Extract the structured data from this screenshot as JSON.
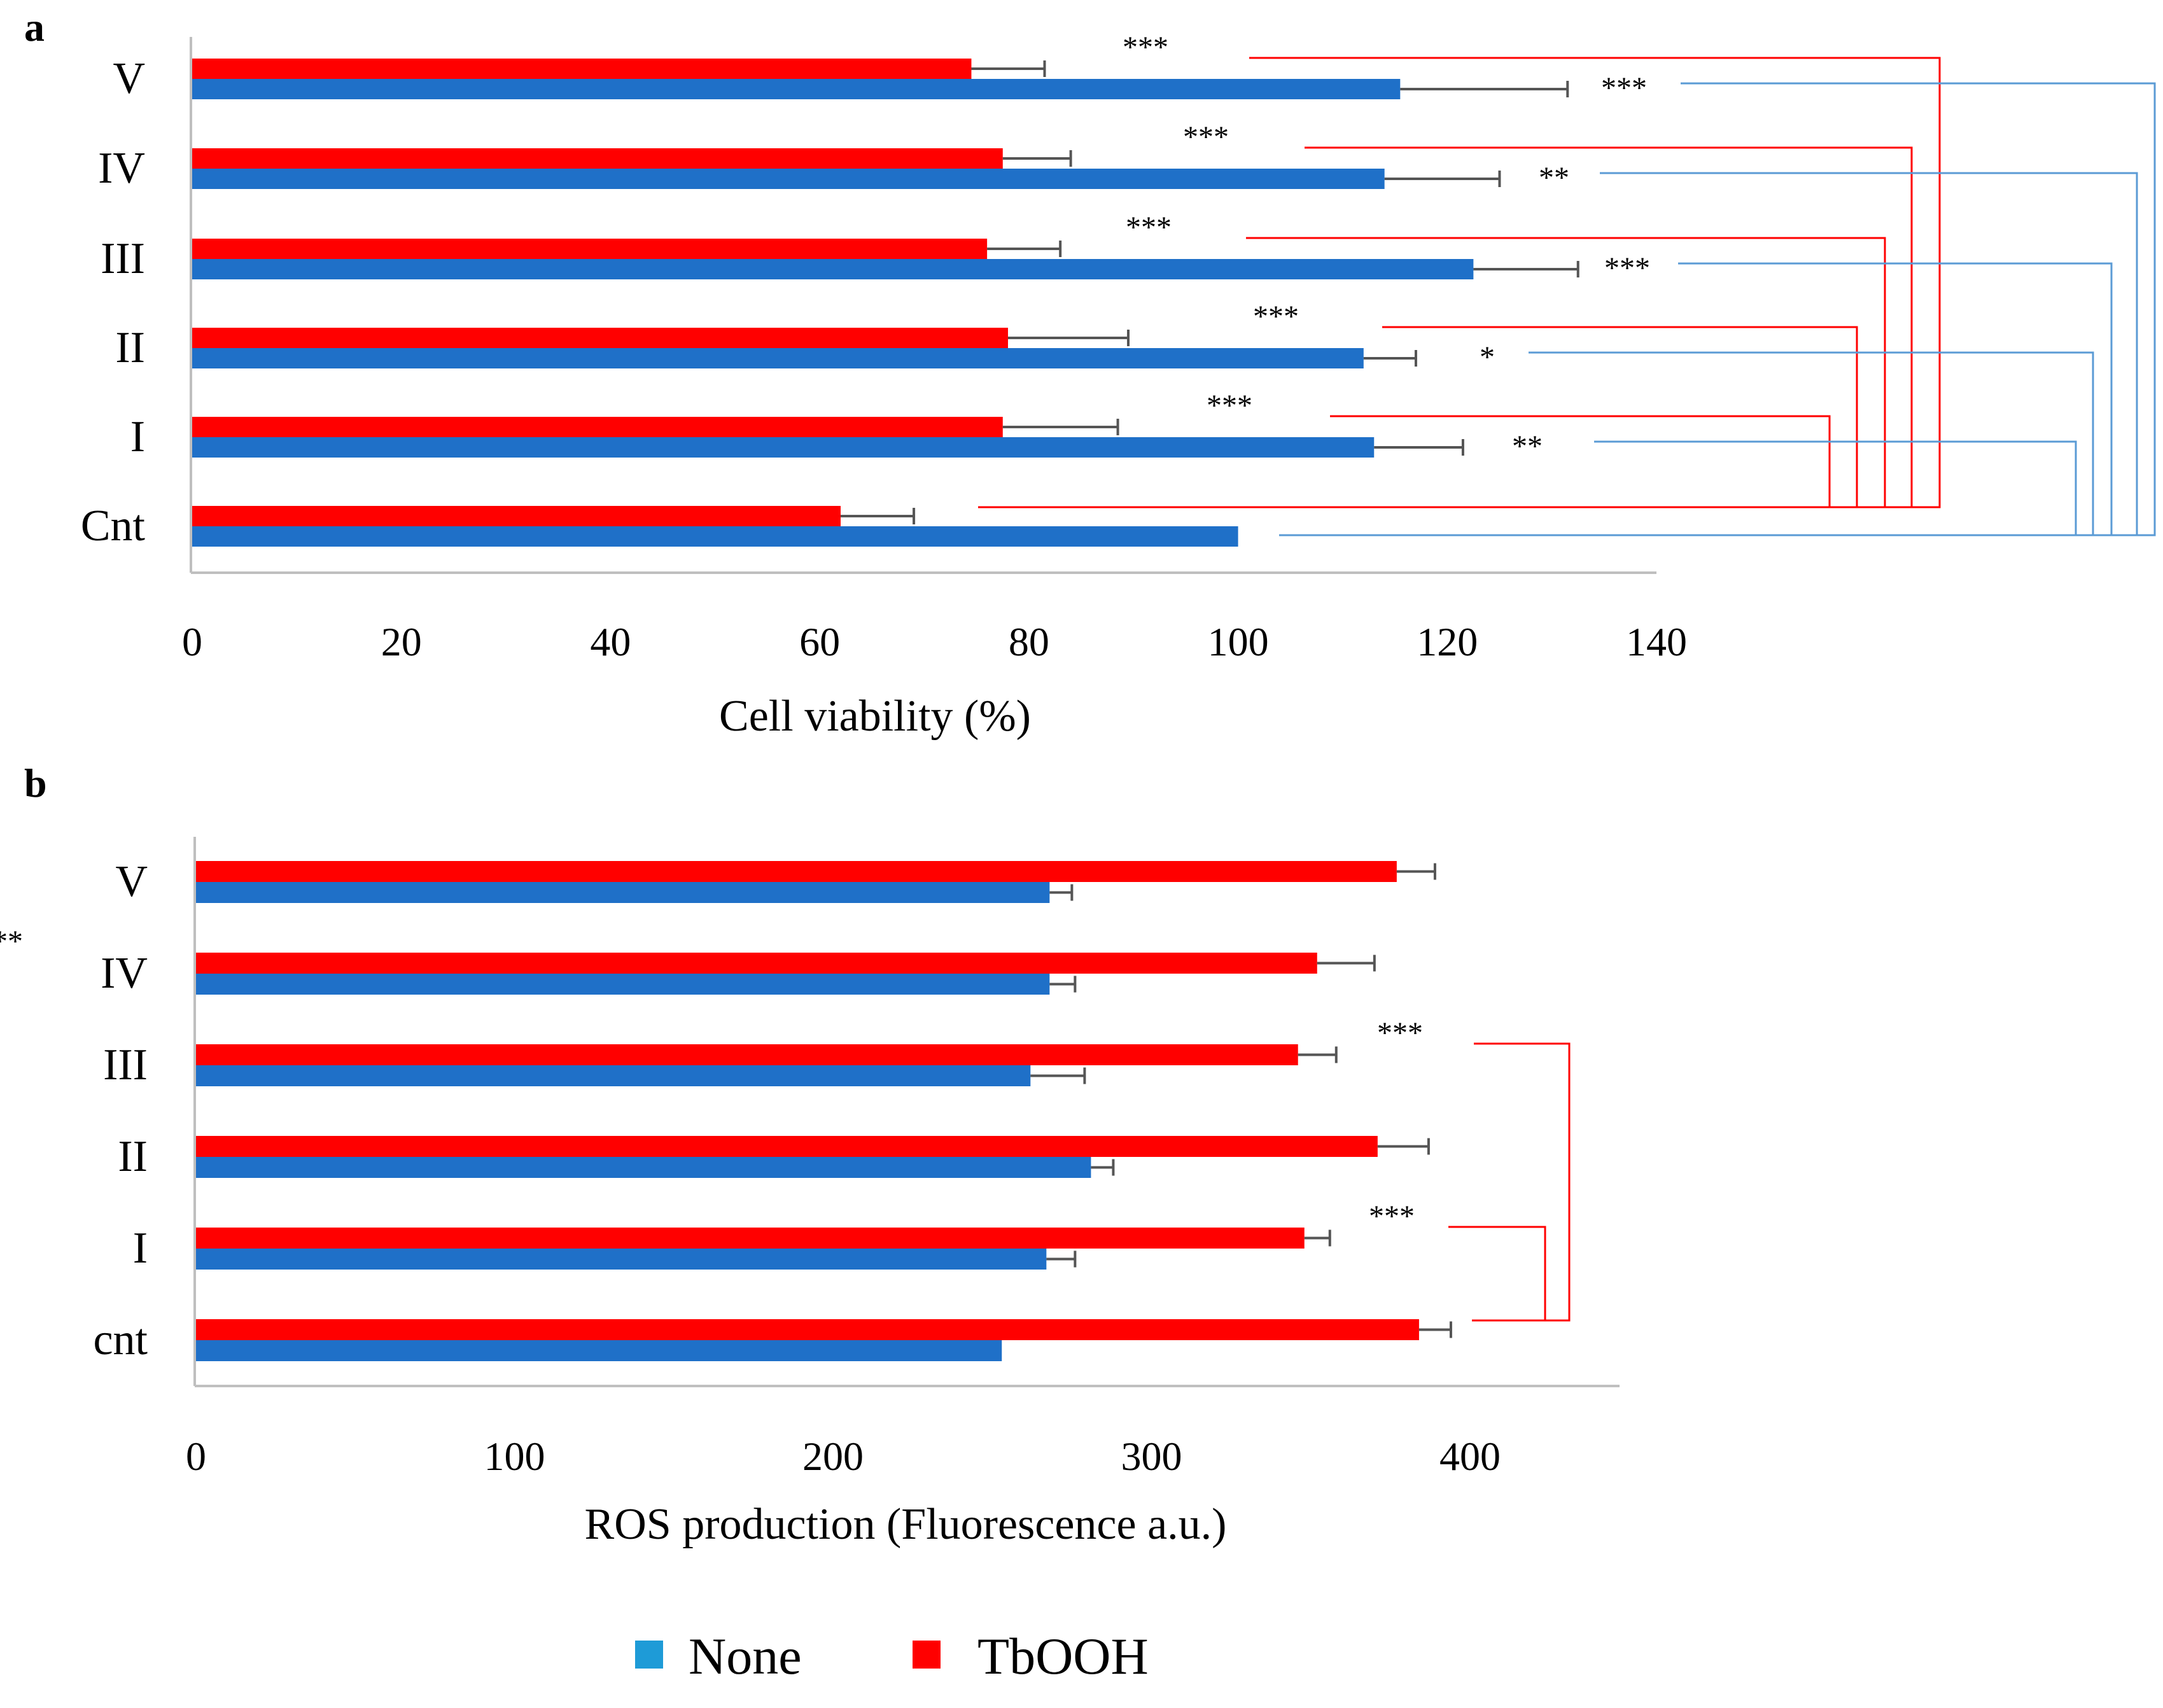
{
  "chart_data": [
    {
      "panel": "a",
      "type": "bar",
      "orientation": "horizontal",
      "categories": [
        "V",
        "IV",
        "III",
        "II",
        "I",
        "Cnt"
      ],
      "xlabel": "Cell viability (%)",
      "xlim": [
        0,
        140
      ],
      "xticks": [
        "0",
        "20",
        "40",
        "60",
        "80",
        "100",
        "120",
        "140"
      ],
      "series": [
        {
          "name": "TbOOH",
          "color": "#ff0000",
          "values": [
            74.5,
            77.5,
            76,
            78,
            77.5,
            62
          ],
          "errors": [
            7,
            6.5,
            7,
            11.5,
            11,
            7
          ]
        },
        {
          "name": "None",
          "color": "#1f70c8",
          "values": [
            115.5,
            114,
            122.5,
            112,
            113,
            100
          ],
          "errors": [
            16,
            11,
            10,
            5,
            8.5,
            0
          ]
        }
      ],
      "significance": [
        {
          "category": "V",
          "series": "TbOOH",
          "label": "***"
        },
        {
          "category": "V",
          "series": "None",
          "label": "***"
        },
        {
          "category": "IV",
          "series": "TbOOH",
          "label": "***"
        },
        {
          "category": "IV",
          "series": "None",
          "label": "**"
        },
        {
          "category": "III",
          "series": "TbOOH",
          "label": "***"
        },
        {
          "category": "III",
          "series": "None",
          "label": "***"
        },
        {
          "category": "II",
          "series": "TbOOH",
          "label": "***"
        },
        {
          "category": "II",
          "series": "None",
          "label": "*"
        },
        {
          "category": "I",
          "series": "TbOOH",
          "label": "***"
        },
        {
          "category": "I",
          "series": "None",
          "label": "**"
        }
      ]
    },
    {
      "panel": "b",
      "type": "bar",
      "orientation": "horizontal",
      "categories": [
        "V",
        "IV",
        "III",
        "II",
        "I",
        "cnt"
      ],
      "xlabel": "ROS production (Fluorescence a.u.)",
      "xlim": [
        0,
        400
      ],
      "xticks": [
        "0",
        "100",
        "200",
        "300",
        "400"
      ],
      "series": [
        {
          "name": "TbOOH",
          "color": "#ff0000",
          "values": [
            377,
            352,
            346,
            371,
            348,
            384
          ],
          "errors": [
            12,
            18,
            12,
            16,
            8,
            10
          ]
        },
        {
          "name": "None",
          "color": "#1f70c8",
          "values": [
            268,
            268,
            262,
            281,
            267,
            253
          ],
          "errors": [
            7,
            8,
            17,
            7,
            9,
            0
          ]
        }
      ],
      "significance": [
        {
          "category": "IV",
          "series": "TbOOH",
          "label": "***"
        },
        {
          "category": "III",
          "series": "TbOOH",
          "label": "***"
        },
        {
          "category": "I",
          "series": "TbOOH",
          "label": "***"
        }
      ]
    }
  ],
  "panels": {
    "a": {
      "letter": "a"
    },
    "b": {
      "letter": "b"
    }
  },
  "legend": {
    "items": [
      {
        "name": "None",
        "color": "#1e9bd7"
      },
      {
        "name": "TbOOH",
        "color": "#ff0000"
      }
    ]
  },
  "colors": {
    "tbooh_bar": "#ff0000",
    "none_bar": "#1f70c8",
    "bracket_red": "#ff0000",
    "bracket_blue": "#5b9bd5",
    "error_bar": "#555555",
    "axis": "#bfbfbf"
  }
}
